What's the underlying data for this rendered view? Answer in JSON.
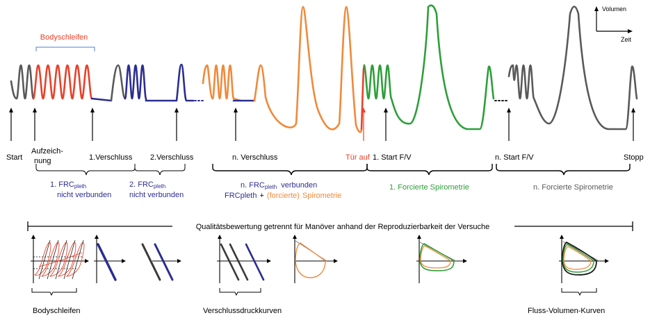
{
  "colors": {
    "gray": "#595959",
    "red": "#e8412b",
    "blue": "#2b2d91",
    "orange": "#f0893a",
    "green": "#2e9e3a",
    "black": "#1a1a1a",
    "bracket_blue": "#4a7fd4"
  },
  "axes_legend": {
    "y_label": "Volumen",
    "x_label": "Zeit"
  },
  "bodyschleifen_header": "Bodyschleifen",
  "markers": {
    "start": "Start",
    "aufzeichnung_1": "Aufzeich-",
    "aufzeichnung_2": "nung",
    "verschluss1": "1.Verschluss",
    "verschluss2": "2.Verschluss",
    "verschlussn": "n. Verschluss",
    "tuer_auf": "Tür auf",
    "start_fv1": "1. Start F/V",
    "start_fvn": "n. Start F/V",
    "stopp": "Stopp"
  },
  "phases": {
    "p1_line1": "1. FRC",
    "p1_sub": "pleth",
    "p1_line2": "nicht  verbunden",
    "p2_line1": "2. FRC",
    "p2_sub": "pleth",
    "p2_line2": "nicht  verbunden",
    "p3_line1a": "n. FRC",
    "p3_sub": "pleth",
    "p3_line1b": "verbunden",
    "p3_line2a": "FRCpleth",
    "p3_plus": "+",
    "p3_line2b": "(forcierte)",
    "p3_line2c": "Spirometrie",
    "p4": "1. Forcierte Spirometrie",
    "p5": "n. Forcierte Spirometrie"
  },
  "quality_text": "Qualitätsbewertung getrennt für Manöver anhand der Reproduzierbarkeit der Versuche",
  "bottom_labels": {
    "bodyschleifen": "Bodyschleifen",
    "verschlussdruck": "Verschlussdruckkurven",
    "flussvolumen": "Fluss-Volumen-Kurven"
  }
}
